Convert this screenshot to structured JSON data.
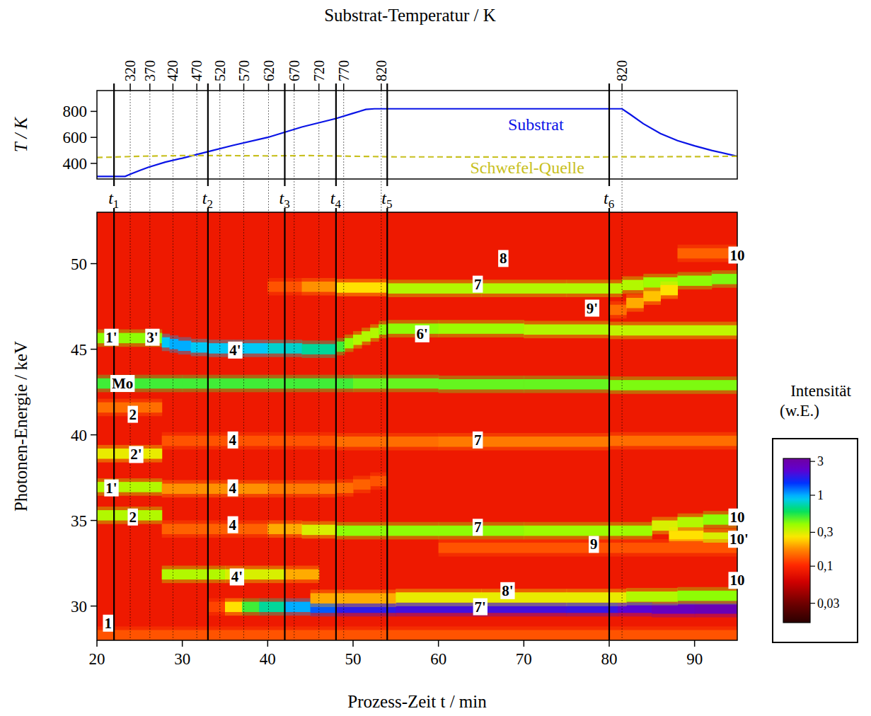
{
  "chart_data": [
    {
      "type": "line",
      "ylabel": "T / K",
      "x2label": "Substrat-Temperatur / K",
      "xlim": [
        20,
        95
      ],
      "ylim": [
        280,
        960
      ],
      "yticks": [
        400,
        600,
        800
      ],
      "x2ticks": [
        {
          "value": 23.9,
          "label": "320"
        },
        {
          "value": 26.2,
          "label": "370"
        },
        {
          "value": 28.9,
          "label": "420"
        },
        {
          "value": 31.7,
          "label": "470"
        },
        {
          "value": 34.4,
          "label": "520"
        },
        {
          "value": 37.2,
          "label": "570"
        },
        {
          "value": 40.1,
          "label": "620"
        },
        {
          "value": 43.1,
          "label": "670"
        },
        {
          "value": 46.0,
          "label": "720"
        },
        {
          "value": 48.9,
          "label": "770"
        },
        {
          "value": 53.3,
          "label": "820"
        },
        {
          "value": 81.5,
          "label": "820"
        }
      ],
      "vlines": [
        {
          "x": 22,
          "label": "t",
          "sub": "1"
        },
        {
          "x": 33,
          "label": "t",
          "sub": "2"
        },
        {
          "x": 42,
          "label": "t",
          "sub": "3"
        },
        {
          "x": 48,
          "label": "t",
          "sub": "4"
        },
        {
          "x": 54,
          "label": "t",
          "sub": "5"
        },
        {
          "x": 80,
          "label": "t",
          "sub": "6"
        }
      ],
      "series": [
        {
          "name": "Substrat",
          "color": "#0a14e6",
          "line_style": "solid",
          "label_at": [
            71.4,
            700
          ],
          "x": [
            20,
            23.3,
            24,
            25,
            26,
            28,
            30,
            33,
            36,
            40,
            44,
            48,
            50,
            51.5,
            52.5,
            81.5,
            82.5,
            84,
            86,
            88,
            90,
            92,
            95
          ],
          "values": [
            300,
            300,
            320,
            345,
            370,
            410,
            440,
            490,
            540,
            600,
            680,
            745,
            785,
            815,
            820,
            820,
            775,
            705,
            630,
            575,
            535,
            500,
            455
          ]
        },
        {
          "name": "Schwefel-Quelle",
          "color": "#c8c020",
          "line_style": "dashed",
          "label_at": [
            70.4,
            368
          ],
          "x": [
            20,
            25,
            30,
            35,
            40,
            45,
            50,
            55,
            60,
            70,
            80,
            90,
            95
          ],
          "values": [
            445,
            455,
            460,
            460,
            458,
            460,
            455,
            450,
            450,
            448,
            450,
            452,
            455
          ]
        }
      ]
    },
    {
      "type": "heatmap",
      "xlabel": "Prozess-Zeit t / min",
      "ylabel": "Photonen-Energie / keV",
      "xlim": [
        20,
        95
      ],
      "ylim": [
        28,
        53
      ],
      "xticks": [
        20,
        30,
        40,
        50,
        60,
        70,
        80,
        90
      ],
      "yticks": [
        30,
        35,
        40,
        45,
        50
      ],
      "background": 0.085,
      "peaks": [
        {
          "bins": [
            20,
            30,
            40,
            50,
            60,
            70,
            80,
            95
          ],
          "y": [
            43.0,
            43.0,
            43.0,
            43.0,
            42.95,
            42.95,
            42.9
          ],
          "values": [
            0.5,
            0.5,
            0.5,
            0.45,
            0.45,
            0.45,
            0.42
          ]
        },
        {
          "bins": [
            20,
            27.6
          ],
          "y": [
            45.65
          ],
          "values": [
            0.4
          ]
        },
        {
          "bins": [
            27.6,
            28.5,
            29.5,
            31,
            33,
            36,
            40,
            44,
            48
          ],
          "y": [
            45.4,
            45.3,
            45.2,
            45.1,
            45.05,
            45.05,
            45.05,
            45.0
          ],
          "values": [
            0.9,
            1.0,
            1.0,
            0.9,
            0.9,
            0.9,
            0.8,
            0.7
          ]
        },
        {
          "bins": [
            48,
            49,
            50,
            51,
            52,
            53,
            54
          ],
          "y": [
            45.15,
            45.35,
            45.55,
            45.75,
            45.95,
            46.15
          ],
          "values": [
            0.5,
            0.4,
            0.35,
            0.35,
            0.35,
            0.4
          ]
        },
        {
          "bins": [
            54,
            60,
            70,
            80,
            95
          ],
          "y": [
            46.2,
            46.2,
            46.15,
            46.1
          ],
          "values": [
            0.4,
            0.38,
            0.35,
            0.33
          ]
        },
        {
          "bins": [
            20,
            27.6
          ],
          "y": [
            36.95
          ],
          "values": [
            0.35
          ]
        },
        {
          "bins": [
            20,
            27.6
          ],
          "y": [
            35.3
          ],
          "values": [
            0.35
          ]
        },
        {
          "bins": [
            20,
            27.6
          ],
          "y": [
            38.9
          ],
          "values": [
            0.28
          ]
        },
        {
          "bins": [
            20,
            27.6
          ],
          "y": [
            41.6
          ],
          "values": [
            0.15
          ]
        },
        {
          "bins": [
            27.6,
            35,
            42,
            46
          ],
          "y": [
            31.85,
            31.85,
            31.85
          ],
          "values": [
            0.35,
            0.3,
            0.2
          ]
        },
        {
          "bins": [
            27.6,
            40,
            48
          ],
          "y": [
            36.85,
            36.85
          ],
          "values": [
            0.18,
            0.16
          ]
        },
        {
          "bins": [
            48,
            50,
            52,
            54
          ],
          "y": [
            36.9,
            37.1,
            37.3
          ],
          "values": [
            0.15,
            0.14,
            0.13
          ]
        },
        {
          "bins": [
            27.6,
            48
          ],
          "y": [
            39.65
          ],
          "values": [
            0.13
          ]
        },
        {
          "bins": [
            27.6,
            40,
            44,
            48,
            60,
            70,
            80,
            85
          ],
          "y": [
            34.5,
            34.5,
            34.45,
            34.4,
            34.4,
            34.4,
            34.4
          ],
          "values": [
            0.14,
            0.2,
            0.3,
            0.4,
            0.4,
            0.38,
            0.38
          ]
        },
        {
          "bins": [
            85,
            88,
            91,
            95
          ],
          "y": [
            34.7,
            34.9,
            35.05
          ],
          "values": [
            0.3,
            0.35,
            0.4
          ]
        },
        {
          "bins": [
            87,
            91,
            95
          ],
          "y": [
            34.1,
            34.0
          ],
          "values": [
            0.25,
            0.3
          ]
        },
        {
          "bins": [
            33,
            35,
            37,
            39,
            42,
            45,
            48,
            55,
            65,
            75,
            81,
            85,
            90,
            95
          ],
          "y": [
            29.95,
            29.95,
            29.95,
            29.95,
            29.95,
            29.9,
            29.9,
            29.9,
            29.9,
            29.9,
            29.9,
            29.85,
            29.85
          ],
          "values": [
            0.12,
            0.25,
            0.5,
            0.7,
            1.0,
            1.3,
            1.8,
            2.0,
            2.0,
            1.9,
            2.2,
            2.6,
            2.8
          ]
        },
        {
          "bins": [
            45,
            55,
            65,
            75,
            82,
            88,
            95
          ],
          "y": [
            30.45,
            30.5,
            30.5,
            30.5,
            30.55,
            30.6
          ],
          "values": [
            0.2,
            0.28,
            0.28,
            0.28,
            0.35,
            0.4
          ]
        },
        {
          "bins": [
            40,
            44,
            48,
            54,
            65,
            75,
            81.5
          ],
          "y": [
            48.65,
            48.65,
            48.6,
            48.55,
            48.55,
            48.55
          ],
          "values": [
            0.13,
            0.18,
            0.25,
            0.35,
            0.35,
            0.35
          ]
        },
        {
          "bins": [
            81.5,
            84,
            88,
            92,
            95
          ],
          "y": [
            48.75,
            48.9,
            49.0,
            49.1
          ],
          "values": [
            0.35,
            0.38,
            0.4,
            0.42
          ]
        },
        {
          "bins": [
            80,
            82,
            84,
            86,
            88
          ],
          "y": [
            47.3,
            47.7,
            48.1,
            48.45
          ],
          "values": [
            0.15,
            0.2,
            0.22,
            0.25
          ]
        },
        {
          "bins": [
            48,
            60,
            80,
            95
          ],
          "y": [
            39.6,
            39.6,
            39.65
          ],
          "values": [
            0.15,
            0.16,
            0.15
          ]
        },
        {
          "bins": [
            20,
            95
          ],
          "y": [
            28.3
          ],
          "values": [
            0.13
          ]
        },
        {
          "bins": [
            60,
            95
          ],
          "y": [
            33.4
          ],
          "values": [
            0.13
          ]
        },
        {
          "bins": [
            88,
            95
          ],
          "y": [
            50.6
          ],
          "values": [
            0.14
          ]
        }
      ],
      "annotations": [
        {
          "text": "1'",
          "x": 21.7,
          "y": 45.7
        },
        {
          "text": "3'",
          "x": 26.5,
          "y": 45.7
        },
        {
          "text": "4'",
          "x": 36.2,
          "y": 44.95
        },
        {
          "text": "Mo",
          "x": 23.0,
          "y": 43.0
        },
        {
          "text": "2",
          "x": 24.2,
          "y": 41.2
        },
        {
          "text": "2'",
          "x": 24.6,
          "y": 38.85
        },
        {
          "text": "1'",
          "x": 21.7,
          "y": 36.9
        },
        {
          "text": "2",
          "x": 24.2,
          "y": 35.2
        },
        {
          "text": "4'",
          "x": 36.4,
          "y": 31.7
        },
        {
          "text": "1",
          "x": 21.3,
          "y": 29.0
        },
        {
          "text": "4",
          "x": 35.9,
          "y": 39.7
        },
        {
          "text": "4",
          "x": 35.9,
          "y": 36.9
        },
        {
          "text": "4",
          "x": 35.9,
          "y": 34.75
        },
        {
          "text": "6'",
          "x": 58.1,
          "y": 45.9
        },
        {
          "text": "8",
          "x": 67.6,
          "y": 50.3
        },
        {
          "text": "7",
          "x": 64.6,
          "y": 48.8
        },
        {
          "text": "9'",
          "x": 78.0,
          "y": 47.4
        },
        {
          "text": "7",
          "x": 64.6,
          "y": 39.7
        },
        {
          "text": "7",
          "x": 64.6,
          "y": 34.6
        },
        {
          "text": "8'",
          "x": 68.1,
          "y": 30.9
        },
        {
          "text": "7'",
          "x": 64.9,
          "y": 29.96
        },
        {
          "text": "9",
          "x": 78.2,
          "y": 33.6
        },
        {
          "text": "10",
          "x": 95.0,
          "y": 50.5
        },
        {
          "text": "10",
          "x": 95.0,
          "y": 35.2
        },
        {
          "text": "10'",
          "x": 95.2,
          "y": 33.9
        },
        {
          "text": "10",
          "x": 95.0,
          "y": 31.5
        }
      ],
      "colorbar": {
        "title": [
          "Intensität",
          "(w.E.)"
        ],
        "range": [
          0.016,
          3.3
        ],
        "log": true,
        "ticks": [
          {
            "value": 0.03,
            "label": "0,03"
          },
          {
            "value": 0.1,
            "label": "0,1"
          },
          {
            "value": 0.3,
            "label": "0,3"
          },
          1,
          3
        ]
      }
    }
  ]
}
